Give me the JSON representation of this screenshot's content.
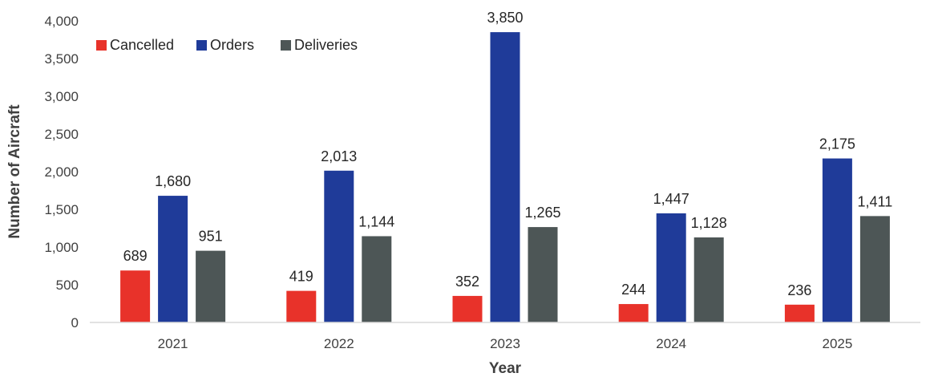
{
  "chart_data": {
    "type": "bar",
    "title": "",
    "xlabel": "Year",
    "ylabel": "Number of Aircraft",
    "categories": [
      "2021",
      "2022",
      "2023",
      "2024",
      "2025"
    ],
    "series": [
      {
        "name": "Cancelled",
        "color": "#e8322a",
        "values": [
          689,
          419,
          352,
          244,
          236
        ],
        "labels": [
          "689",
          "419",
          "352",
          "244",
          "236"
        ]
      },
      {
        "name": "Orders",
        "color": "#1f3b99",
        "values": [
          1680,
          2013,
          3850,
          1447,
          2175
        ],
        "labels": [
          "1,680",
          "2,013",
          "3,850",
          "1,447",
          "2,175"
        ]
      },
      {
        "name": "Deliveries",
        "color": "#4d5656",
        "values": [
          951,
          1144,
          1265,
          1128,
          1411
        ],
        "labels": [
          "951",
          "1,144",
          "1,265",
          "1,128",
          "1,411"
        ]
      }
    ],
    "ylim": [
      0,
      4000
    ],
    "yticks": [
      0,
      500,
      1000,
      1500,
      2000,
      2500,
      3000,
      3500,
      4000
    ],
    "ytick_labels": [
      "0",
      "500",
      "1,000",
      "1,500",
      "2,000",
      "2,500",
      "3,000",
      "3,500",
      "4,000"
    ],
    "grid": false,
    "legend_position": "top-left"
  }
}
